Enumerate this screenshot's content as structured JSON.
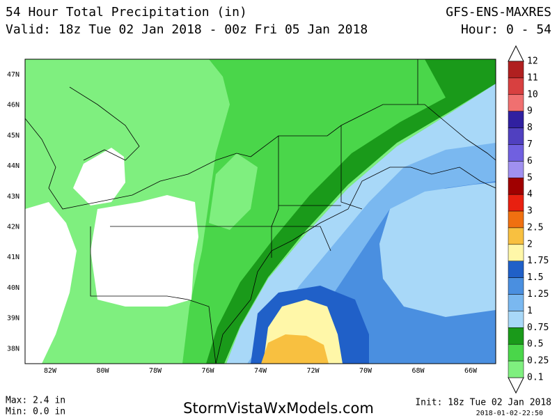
{
  "header": {
    "title": "54 Hour Total Precipitation (in)",
    "valid": "Valid: 18z Tue 02 Jan 2018 - 00z Fri 05 Jan 2018",
    "model": "GFS-ENS-MAXRES",
    "hours": "Hour: 0 - 54"
  },
  "map": {
    "lat_labels": [
      "47N",
      "46N",
      "45N",
      "44N",
      "43N",
      "42N",
      "41N",
      "40N",
      "39N",
      "38N"
    ],
    "lon_labels": [
      "82W",
      "80W",
      "78W",
      "76W",
      "74W",
      "72W",
      "70W",
      "68W",
      "66W"
    ]
  },
  "legend": {
    "labels": [
      "12",
      "11",
      "10",
      "9",
      "8",
      "7",
      "6",
      "5",
      "4",
      "3",
      "2.5",
      "2",
      "1.75",
      "1.5",
      "1.25",
      "1",
      "0.75",
      "0.5",
      "0.25",
      "0.1"
    ],
    "colors": [
      "#b02020",
      "#d84040",
      "#f07070",
      "#3020a0",
      "#5040c0",
      "#7060e0",
      "#a090f0",
      "#a00000",
      "#e82010",
      "#f07010",
      "#f8c040",
      "#fff7a8",
      "#2060c8",
      "#4a8fe0",
      "#7ab8f0",
      "#a8d8f8",
      "#1a9a1a",
      "#4ad64a",
      "#7fef7f"
    ]
  },
  "footer": {
    "max": "Max: 2.4 in",
    "min": "Min: 0.0 in",
    "site": "StormVistaWxModels.com",
    "init": "Init: 18z Tue 02 Jan 2018",
    "timestamp": "2018-01-02-22:50"
  }
}
